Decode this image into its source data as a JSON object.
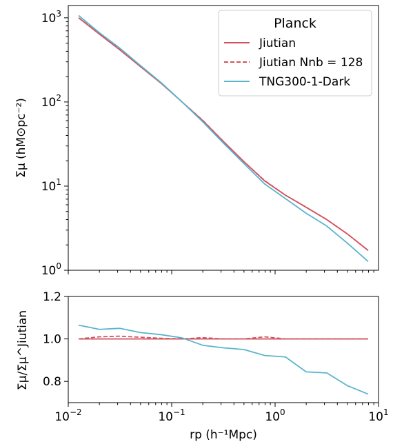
{
  "chart_data": [
    {
      "type": "line",
      "panel": "top",
      "ylabel": "Σμ (hM⊙pc⁻²)",
      "xscale": "log",
      "yscale": "log",
      "xlim": [
        0.01,
        10
      ],
      "ylim": [
        1,
        1400
      ],
      "yticks": [
        {
          "value": 1,
          "base": "10",
          "exp": "0"
        },
        {
          "value": 10,
          "base": "10",
          "exp": "1"
        },
        {
          "value": 100,
          "base": "10",
          "exp": "2"
        },
        {
          "value": 1000,
          "base": "10",
          "exp": "3"
        }
      ],
      "legend": {
        "title": "Planck",
        "placement": "top-right",
        "entries": [
          "Jiutian",
          "Jiutian Nnb = 128",
          "TNG300-1-Dark"
        ]
      },
      "grid": false,
      "series": [
        {
          "name": "Jiutian",
          "color": "#d1535f",
          "style": "solid",
          "x": [
            0.0126,
            0.02,
            0.0316,
            0.05,
            0.0794,
            0.126,
            0.2,
            0.316,
            0.5,
            0.794,
            1.26,
            2.0,
            3.16,
            5.0,
            7.94
          ],
          "y": [
            1000,
            640,
            415,
            262,
            166,
            100,
            60,
            34,
            19.5,
            11.5,
            7.8,
            5.6,
            4.0,
            2.7,
            1.72
          ]
        },
        {
          "name": "Jiutian Nnb = 128",
          "color": "#d1535f",
          "style": "dashed",
          "x": [
            0.0126,
            0.02,
            0.0316,
            0.05,
            0.0794,
            0.126,
            0.2,
            0.316,
            0.5,
            0.794,
            1.26,
            2.0,
            3.16,
            5.0,
            7.94
          ],
          "y": [
            1000,
            648,
            420,
            264,
            167,
            100,
            60.5,
            34,
            19.5,
            11.6,
            7.8,
            5.6,
            4.0,
            2.7,
            1.72
          ]
        },
        {
          "name": "TNG300-1-Dark",
          "color": "#5ab4cc",
          "style": "solid",
          "x": [
            0.0126,
            0.02,
            0.0316,
            0.05,
            0.0794,
            0.126,
            0.2,
            0.316,
            0.5,
            0.794,
            1.26,
            2.0,
            3.16,
            5.0,
            7.94
          ],
          "y": [
            1065,
            665,
            435,
            270,
            169,
            100,
            58,
            32.5,
            18.5,
            10.6,
            7.1,
            4.75,
            3.35,
            2.1,
            1.27
          ]
        }
      ]
    },
    {
      "type": "line",
      "panel": "bottom",
      "ylabel": "Σμ/Σμ^Jiutian",
      "xlabel": "rp (h⁻¹Mpc)",
      "xscale": "log",
      "xlim": [
        0.01,
        10
      ],
      "ylim": [
        0.7,
        1.2
      ],
      "yticks": [
        "0.8",
        "1.0",
        "1.2"
      ],
      "xticks": [
        {
          "value": 0.01,
          "base": "10",
          "exp": "−2"
        },
        {
          "value": 0.1,
          "base": "10",
          "exp": "−1"
        },
        {
          "value": 1,
          "base": "10",
          "exp": "0"
        },
        {
          "value": 10,
          "base": "10",
          "exp": "1"
        }
      ],
      "grid": false,
      "series": [
        {
          "name": "Jiutian",
          "color": "#d1535f",
          "style": "solid",
          "x": [
            0.0126,
            7.94
          ],
          "y": [
            1.0,
            1.0
          ]
        },
        {
          "name": "Jiutian Nnb = 128",
          "color": "#d1535f",
          "style": "dashed",
          "x": [
            0.0126,
            0.02,
            0.0316,
            0.05,
            0.0794,
            0.126,
            0.2,
            0.316,
            0.5,
            0.794,
            1.26,
            2.0,
            3.16,
            5.0,
            7.94
          ],
          "y": [
            1.0,
            1.01,
            1.013,
            1.008,
            1.003,
            1.0,
            1.006,
            1.0,
            1.0,
            1.01,
            1.0,
            1.0,
            1.0,
            1.0,
            1.0
          ]
        },
        {
          "name": "TNG300-1-Dark",
          "color": "#5ab4cc",
          "style": "solid",
          "x": [
            0.0126,
            0.02,
            0.0316,
            0.05,
            0.0794,
            0.126,
            0.2,
            0.316,
            0.5,
            0.794,
            1.26,
            2.0,
            3.16,
            5.0,
            7.94
          ],
          "y": [
            1.065,
            1.045,
            1.05,
            1.03,
            1.02,
            1.005,
            0.97,
            0.958,
            0.95,
            0.922,
            0.915,
            0.845,
            0.84,
            0.78,
            0.74
          ]
        }
      ]
    }
  ]
}
